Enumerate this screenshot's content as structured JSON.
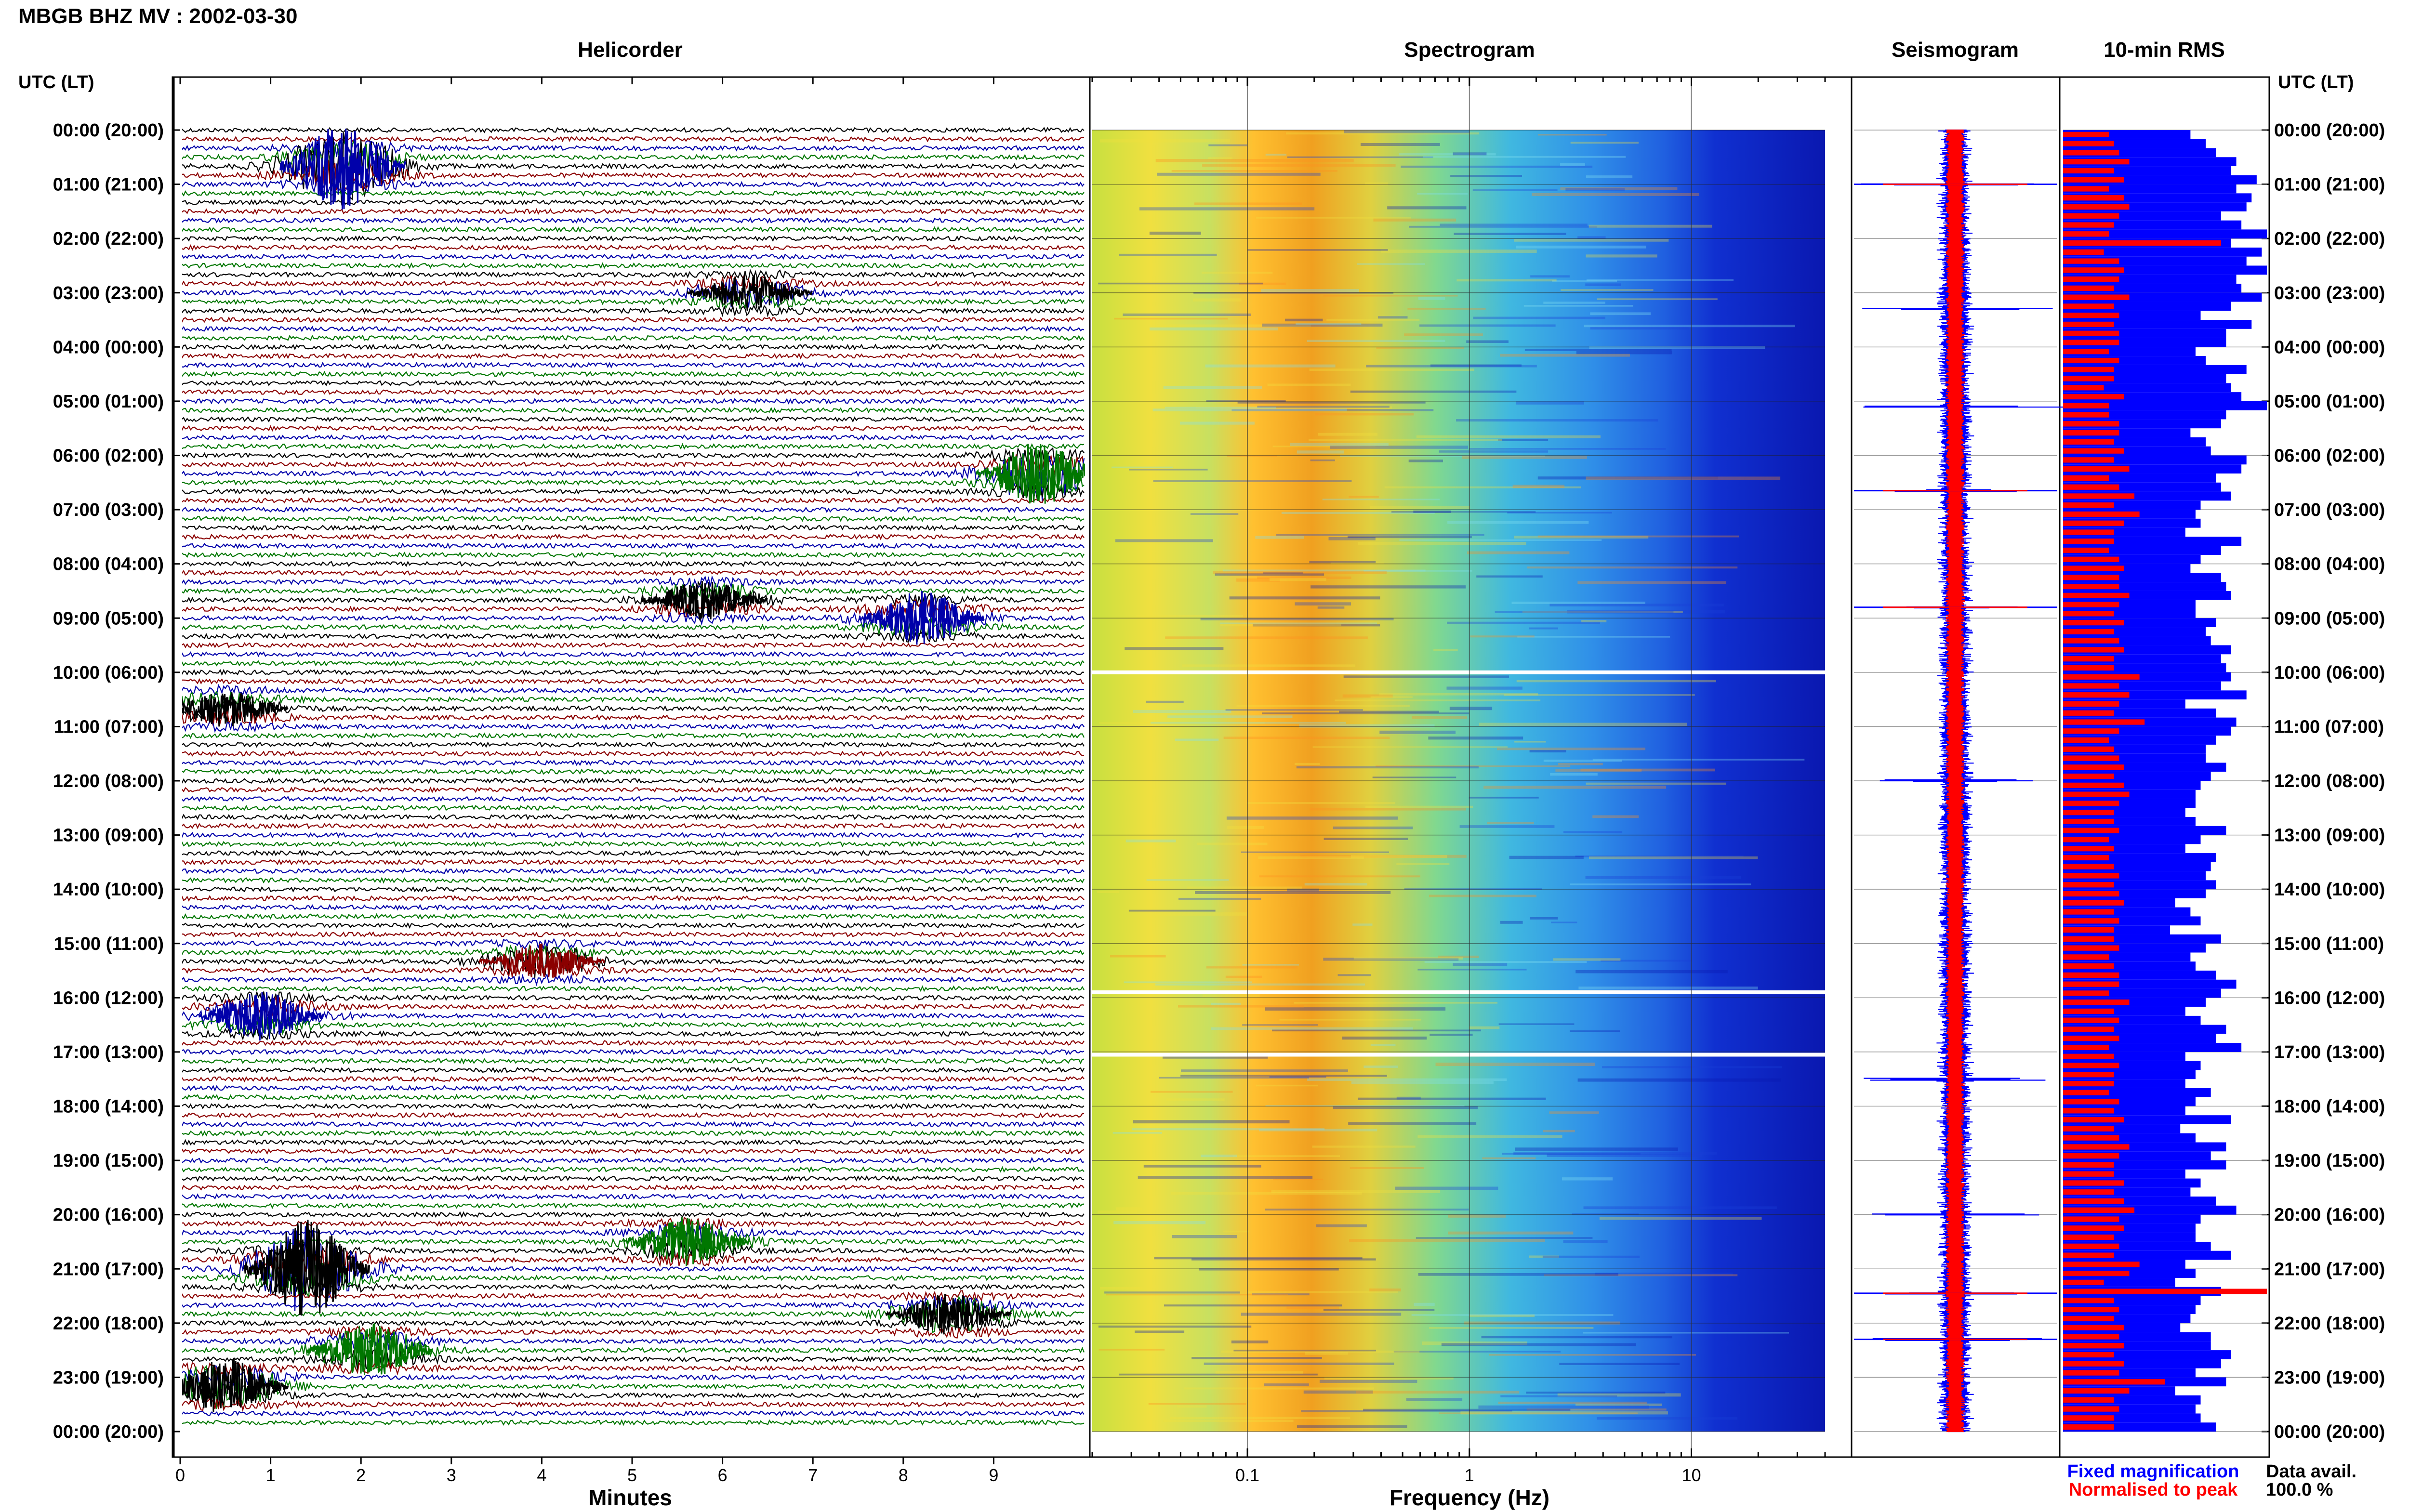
{
  "header": {
    "station": "MBGB BHZ MV : 2002-03-30"
  },
  "panels": {
    "helicorder": {
      "title": "Helicorder"
    },
    "spectrogram": {
      "title": "Spectrogram"
    },
    "seismogram": {
      "title": "Seismogram"
    },
    "rms": {
      "title": "10-min RMS"
    }
  },
  "axis_left_label": "UTC (LT)",
  "axis_right_label": "UTC (LT)",
  "time_labels": [
    "00:00 (20:00)",
    "01:00 (21:00)",
    "02:00 (22:00)",
    "03:00 (23:00)",
    "04:00 (00:00)",
    "05:00 (01:00)",
    "06:00 (02:00)",
    "07:00 (03:00)",
    "08:00 (04:00)",
    "09:00 (05:00)",
    "10:00 (06:00)",
    "11:00 (07:00)",
    "12:00 (08:00)",
    "13:00 (09:00)",
    "14:00 (10:00)",
    "15:00 (11:00)",
    "16:00 (12:00)",
    "17:00 (13:00)",
    "18:00 (14:00)",
    "19:00 (15:00)",
    "20:00 (16:00)",
    "21:00 (17:00)",
    "22:00 (18:00)",
    "23:00 (19:00)",
    "00:00 (20:00)"
  ],
  "xaxis_helicorder": {
    "label": "Minutes",
    "ticks": [
      "0",
      "1",
      "2",
      "3",
      "4",
      "5",
      "6",
      "7",
      "8",
      "9"
    ]
  },
  "xaxis_spectrogram": {
    "label": "Frequency (Hz)",
    "ticks": [
      "0.1",
      "1",
      "10"
    ]
  },
  "legend": {
    "fixed": "Fixed magnification",
    "normalised": "Normalised to peak",
    "data_avail_label": "Data avail.",
    "data_avail_value": "100.0 %"
  },
  "colors": {
    "trace_cycle": [
      "#000000",
      "#8b0000",
      "#0000aa",
      "#007700"
    ],
    "fixed": "#0000ff",
    "normalised": "#ff0000"
  },
  "chart_data": [
    {
      "type": "line",
      "title": "Helicorder",
      "xlabel": "Minutes",
      "xlim": [
        0,
        10
      ],
      "rows": 144,
      "row_minutes": 10,
      "events_hours_minutes": [
        {
          "hour": 0.6,
          "minute": 1.8,
          "amp": 3.5,
          "color": "#0000aa"
        },
        {
          "hour": 6.4,
          "minute": 9.5,
          "amp": 2.6,
          "color": "#007700"
        },
        {
          "hour": 9.0,
          "minute": 8.2,
          "amp": 2.2,
          "color": "#0000aa"
        },
        {
          "hour": 8.6,
          "minute": 5.8,
          "amp": 1.6,
          "color": "#000000"
        },
        {
          "hour": 3.0,
          "minute": 6.3,
          "amp": 1.5,
          "color": "#000000"
        },
        {
          "hour": 16.3,
          "minute": 0.9,
          "amp": 2.0,
          "color": "#0000aa"
        },
        {
          "hour": 21.0,
          "minute": 1.4,
          "amp": 4.0,
          "color": "#000000"
        },
        {
          "hour": 22.5,
          "minute": 2.1,
          "amp": 2.2,
          "color": "#007700"
        },
        {
          "hour": 23.1,
          "minute": 0.5,
          "amp": 2.3,
          "color": "#000000"
        },
        {
          "hour": 20.5,
          "minute": 5.6,
          "amp": 2.0,
          "color": "#007700"
        },
        {
          "hour": 21.9,
          "minute": 8.5,
          "amp": 1.8,
          "color": "#000000"
        },
        {
          "hour": 15.4,
          "minute": 4.0,
          "amp": 1.5,
          "color": "#8b0000"
        },
        {
          "hour": 10.6,
          "minute": 0.5,
          "amp": 1.5,
          "color": "#000000"
        }
      ]
    },
    {
      "type": "heatmap",
      "title": "Spectrogram",
      "xlabel": "Frequency (Hz)",
      "xscale": "log",
      "xlim": [
        0.02,
        40
      ],
      "rows_hours": [
        0,
        24
      ],
      "gaps_hours": [
        10.0,
        15.9,
        17.05
      ]
    },
    {
      "type": "line",
      "title": "Seismogram",
      "spikes_hours": [
        1.0,
        6.65,
        8.8,
        21.45,
        22.3,
        3.3,
        5.1,
        12.0,
        17.5,
        20.0
      ]
    },
    {
      "type": "bar",
      "title": "10-min RMS",
      "orientation": "horizontal",
      "series": [
        {
          "name": "Fixed magnification",
          "color": "#0000ff",
          "values": [
            2.5,
            2.8,
            3.0,
            3.4,
            3.3,
            3.8,
            3.4,
            3.7,
            3.6,
            3.1,
            3.5,
            4.3,
            3.3,
            3.9,
            3.6,
            4.0,
            3.4,
            3.5,
            3.9,
            3.3,
            2.7,
            3.7,
            3.2,
            3.2,
            2.6,
            2.8,
            3.6,
            3.2,
            3.3,
            3.5,
            4.2,
            3.2,
            3.1,
            2.5,
            2.8,
            2.9,
            3.6,
            3.5,
            3.0,
            3.1,
            3.3,
            2.7,
            2.6,
            2.7,
            2.4,
            3.5,
            3.1,
            2.7,
            2.5,
            3.1,
            3.2,
            3.3,
            2.6,
            2.6,
            3.0,
            2.8,
            2.9,
            3.3,
            3.1,
            3.2,
            3.3,
            3.1,
            3.6,
            2.4,
            3.0,
            3.4,
            3.3,
            3.0,
            2.8,
            2.8,
            3.2,
            2.9,
            2.7,
            2.6,
            2.6,
            2.4,
            2.6,
            3.2,
            2.7,
            2.4,
            3.0,
            2.9,
            2.8,
            3.0,
            2.8,
            2.2,
            2.5,
            2.7,
            2.1,
            3.1,
            2.8,
            2.5,
            2.6,
            3.0,
            3.4,
            3.1,
            2.8,
            2.4,
            2.7,
            3.2,
            3.0,
            3.5,
            2.4,
            2.7,
            2.6,
            2.4,
            2.9,
            2.6,
            2.4,
            3.3,
            2.3,
            2.6,
            3.2,
            2.9,
            3.2,
            2.4,
            2.7,
            2.5,
            3.0,
            3.4,
            2.7,
            2.6,
            2.6,
            2.9,
            3.3,
            2.4,
            2.6,
            2.2,
            3.1,
            2.7,
            2.6,
            2.5,
            2.3,
            2.9,
            2.9,
            3.3,
            3.1,
            2.6,
            3.2,
            2.2,
            2.7,
            2.6,
            2.7,
            3.0
          ]
        },
        {
          "name": "Normalised to peak",
          "color": "#ff0000",
          "values": [
            0.9,
            1.0,
            1.1,
            1.3,
            1.0,
            1.2,
            0.9,
            1.2,
            1.3,
            1.1,
            1.0,
            0.9,
            3.1,
            0.8,
            1.1,
            1.2,
            1.1,
            1.0,
            1.3,
            1.0,
            1.1,
            1.0,
            1.1,
            1.1,
            0.9,
            1.1,
            1.0,
            1.0,
            0.8,
            1.2,
            0.9,
            0.9,
            1.1,
            1.1,
            1.0,
            1.2,
            1.0,
            1.3,
            0.9,
            1.1,
            1.4,
            1.0,
            1.5,
            1.2,
            1.0,
            1.0,
            0.9,
            1.1,
            1.2,
            1.1,
            1.1,
            1.3,
            1.1,
            1.0,
            1.2,
            1.0,
            1.1,
            1.2,
            1.0,
            1.0,
            1.5,
            1.1,
            1.3,
            1.1,
            1.0,
            1.6,
            1.1,
            0.9,
            1.0,
            1.1,
            1.2,
            1.0,
            1.2,
            1.3,
            1.1,
            1.0,
            1.0,
            1.1,
            0.9,
            1.0,
            0.9,
            1.0,
            1.1,
            1.0,
            1.1,
            1.2,
            1.0,
            1.1,
            1.0,
            1.0,
            1.1,
            0.9,
            1.0,
            1.1,
            1.1,
            0.9,
            1.3,
            1.0,
            1.1,
            1.0,
            1.1,
            0.9,
            1.0,
            1.1,
            1.0,
            1.0,
            0.9,
            1.1,
            1.0,
            1.2,
            1.0,
            1.1,
            1.3,
            1.1,
            1.0,
            1.0,
            1.2,
            1.0,
            1.2,
            1.4,
            1.1,
            1.2,
            1.0,
            1.1,
            1.0,
            1.5,
            1.3,
            0.8,
            4.0,
            1.0,
            1.1,
            1.0,
            1.2,
            1.1,
            1.2,
            1.0,
            1.2,
            1.1,
            2.0,
            1.3,
            1.0,
            1.1,
            1.0,
            1.0
          ]
        }
      ]
    }
  ]
}
